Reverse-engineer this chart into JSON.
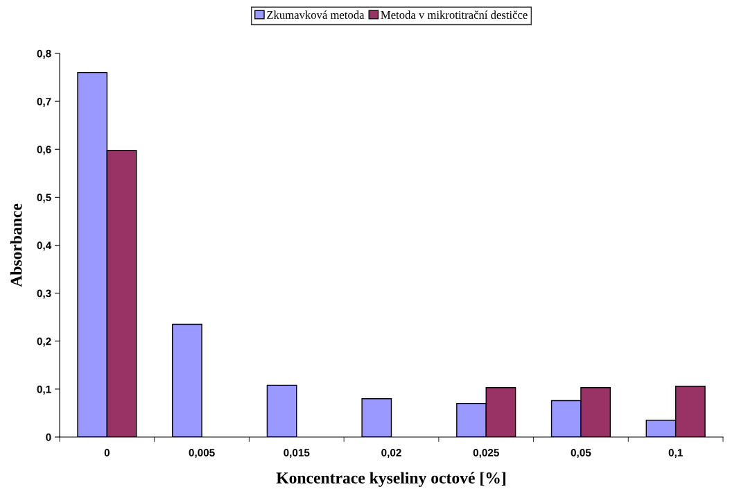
{
  "chart_data": {
    "type": "bar",
    "xlabel": "Koncentrace kyseliny octové [%]",
    "ylabel": "Absorbance",
    "categories": [
      "0",
      "0,005",
      "0,015",
      "0,02",
      "0,025",
      "0,05",
      "0,1"
    ],
    "series": [
      {
        "name": "Zkumavková metoda",
        "color": "#9999ff",
        "values": [
          0.76,
          0.235,
          0.108,
          0.08,
          0.07,
          0.076,
          0.035
        ]
      },
      {
        "name": "Metoda v mikrotitrační destičce",
        "color": "#993366",
        "values": [
          0.598,
          null,
          null,
          null,
          0.103,
          0.103,
          0.106
        ]
      }
    ],
    "ylim": [
      0,
      0.8
    ],
    "yticks": [
      {
        "value": 0,
        "label": "0"
      },
      {
        "value": 0.1,
        "label": "0,1"
      },
      {
        "value": 0.2,
        "label": "0,2"
      },
      {
        "value": 0.3,
        "label": "0,3"
      },
      {
        "value": 0.4,
        "label": "0,4"
      },
      {
        "value": 0.5,
        "label": "0,5"
      },
      {
        "value": 0.6,
        "label": "0,6"
      },
      {
        "value": 0.7,
        "label": "0,7"
      },
      {
        "value": 0.8,
        "label": "0,8"
      }
    ],
    "grid": false,
    "legend": "top"
  }
}
